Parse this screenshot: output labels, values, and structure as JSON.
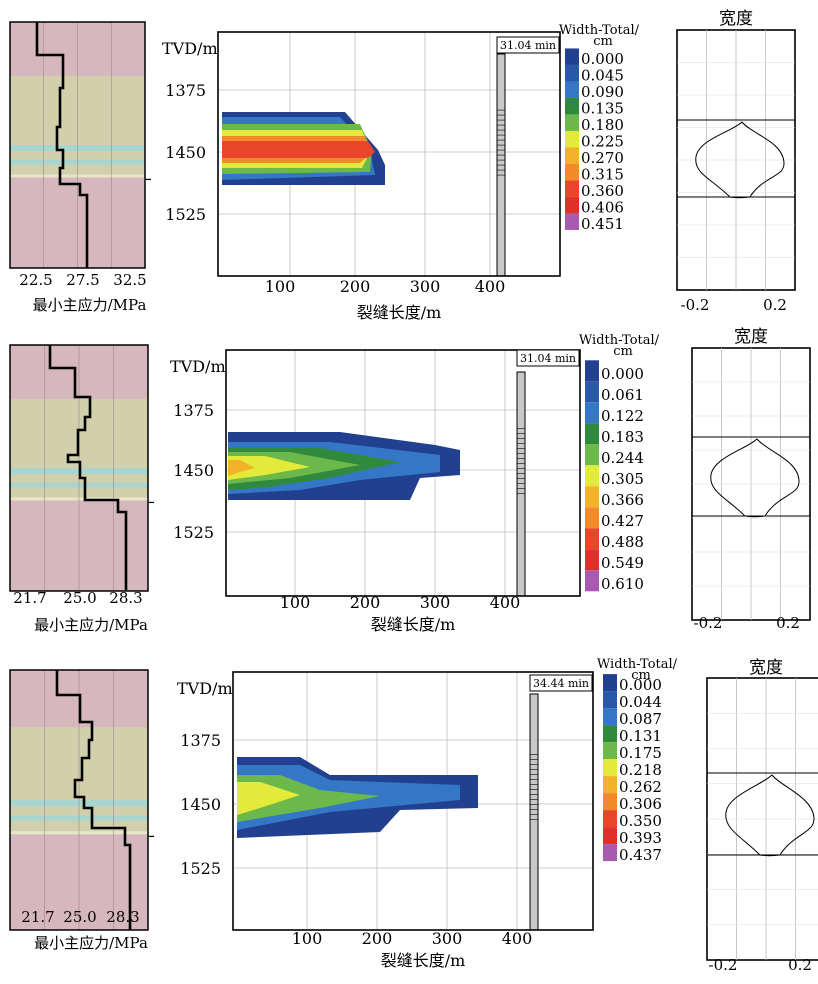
{
  "chart_data": [
    {
      "type": "heatmap",
      "stress_panel": {
        "xlabel": "最小主应力/MPa",
        "ticks": [
          "22.5",
          "27.5",
          "32.5"
        ]
      },
      "main_panel": {
        "ylabel": "TVD/m",
        "yticks": [
          "1375",
          "1450",
          "1525"
        ],
        "xlabel": "裂缝长度/m",
        "xticks": [
          "100",
          "200",
          "300",
          "400"
        ],
        "time": "31.04 min"
      },
      "legend": {
        "title": "Width-Total/ cm",
        "values": [
          "0.000",
          "0.045",
          "0.090",
          "0.135",
          "0.180",
          "0.225",
          "0.270",
          "0.315",
          "0.360",
          "0.406",
          "0.451"
        ]
      },
      "width_panel": {
        "title": "宽度",
        "ticks": [
          "-0.2",
          "0.2"
        ]
      }
    },
    {
      "type": "heatmap",
      "stress_panel": {
        "xlabel": "最小主应力/MPa",
        "ticks": [
          "21.7",
          "25.0",
          "28.3"
        ]
      },
      "main_panel": {
        "ylabel": "TVD/m",
        "yticks": [
          "1375",
          "1450",
          "1525"
        ],
        "xlabel": "裂缝长度/m",
        "xticks": [
          "100",
          "200",
          "300",
          "400"
        ],
        "time": "31.04 min"
      },
      "legend": {
        "title": "Width-Total/ cm",
        "values": [
          "0.000",
          "0.061",
          "0.122",
          "0.183",
          "0.244",
          "0.305",
          "0.366",
          "0.427",
          "0.488",
          "0.549",
          "0.610"
        ]
      },
      "width_panel": {
        "title": "宽度",
        "ticks": [
          "-0.2",
          "0.2"
        ]
      }
    },
    {
      "type": "heatmap",
      "stress_panel": {
        "xlabel": "最小主应力/MPa",
        "ticks": [
          "21.7",
          "25.0",
          "28.3"
        ]
      },
      "main_panel": {
        "ylabel": "TVD/m",
        "yticks": [
          "1375",
          "1450",
          "1525"
        ],
        "xlabel": "裂缝长度/m",
        "xticks": [
          "100",
          "200",
          "300",
          "400"
        ],
        "time": "34.44 min"
      },
      "legend": {
        "title": "Width-Total/ cm",
        "values": [
          "0.000",
          "0.044",
          "0.087",
          "0.131",
          "0.175",
          "0.218",
          "0.262",
          "0.306",
          "0.350",
          "0.393",
          "0.437"
        ]
      },
      "width_panel": {
        "title": "宽度",
        "ticks": [
          "-0.2",
          "0.2"
        ]
      }
    }
  ],
  "colors": {
    "scale": [
      "#21408f",
      "#2a58a8",
      "#3477c6",
      "#2f8a3e",
      "#6db84a",
      "#e3ea3a",
      "#f2b32a",
      "#f28a2a",
      "#e8452a",
      "#e0302a",
      "#a85ab0"
    ],
    "shale": "#d6b7bd",
    "sand": "#d2d0ac",
    "thin_bed": "#a8d5cd"
  }
}
